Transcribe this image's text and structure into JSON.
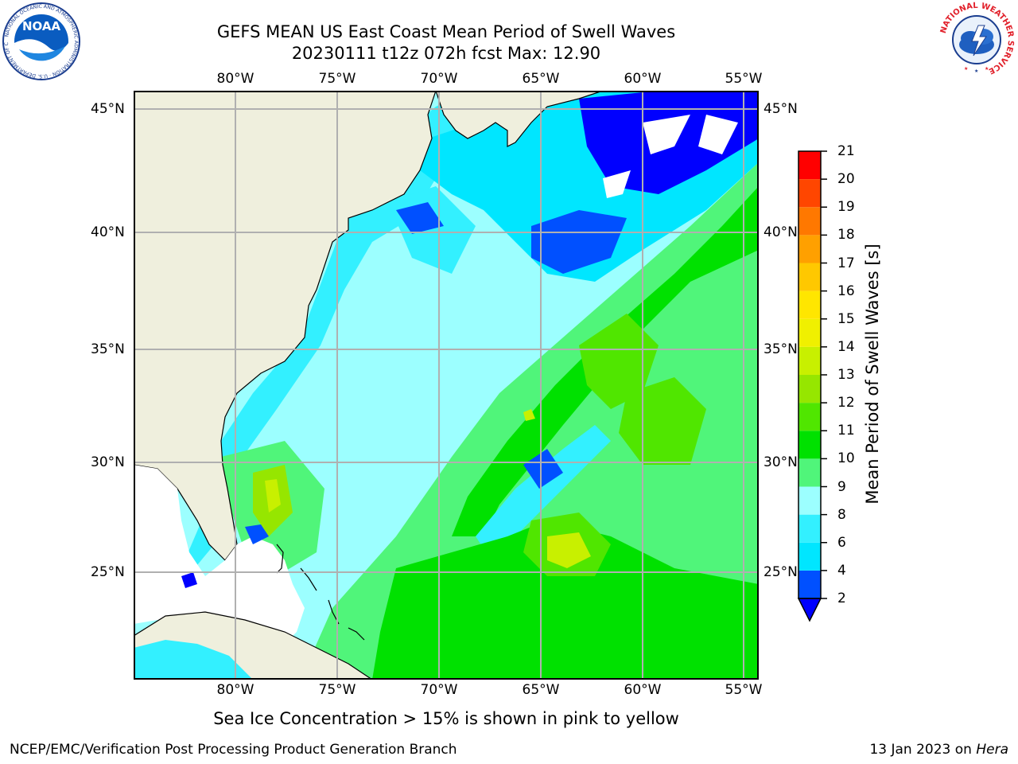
{
  "title_line1": "GEFS MEAN US East Coast Mean Period of Swell Waves",
  "title_line2": "20230111 t12z 072h fcst   Max: 12.90",
  "lon_labels": [
    "80°W",
    "75°W",
    "70°W",
    "65°W",
    "60°W",
    "55°W"
  ],
  "lat_labels": [
    "45°N",
    "40°N",
    "35°N",
    "30°N",
    "25°N"
  ],
  "colorbar": {
    "label": "Mean Period of Swell Waves [s]",
    "ticks": [
      "2",
      "4",
      "6",
      "8",
      "9",
      "10",
      "11",
      "12",
      "13",
      "14",
      "15",
      "16",
      "17",
      "18",
      "19",
      "20",
      "21"
    ],
    "colors": [
      "#0050ff",
      "#00e6ff",
      "#33f0ff",
      "#9cffff",
      "#50f57a",
      "#00e100",
      "#50e600",
      "#96e600",
      "#c8f000",
      "#f0f000",
      "#ffe600",
      "#ffc800",
      "#ffa000",
      "#ff7800",
      "#ff4600",
      "#ff0000"
    ],
    "under_color": "#0000ff"
  },
  "colors": {
    "land": "#efefdd",
    "undefined": "#ffffff",
    "grid": "#b0b0b0"
  },
  "note": "Sea Ice Concentration > 15% is shown in pink to yellow",
  "footer_left": "NCEP/EMC/Verification Post Processing Product Generation Branch",
  "footer_date": "13 Jan 2023 on",
  "footer_machine": "Hera",
  "logos": {
    "noaa": "NOAA",
    "noaa_ring": "NATIONAL OCEANIC AND ATMOSPHERIC ADMINISTRATION · U.S. DEPARTMENT OF COMMERCE",
    "nws_ring": "NATIONAL WEATHER SERVICE"
  }
}
